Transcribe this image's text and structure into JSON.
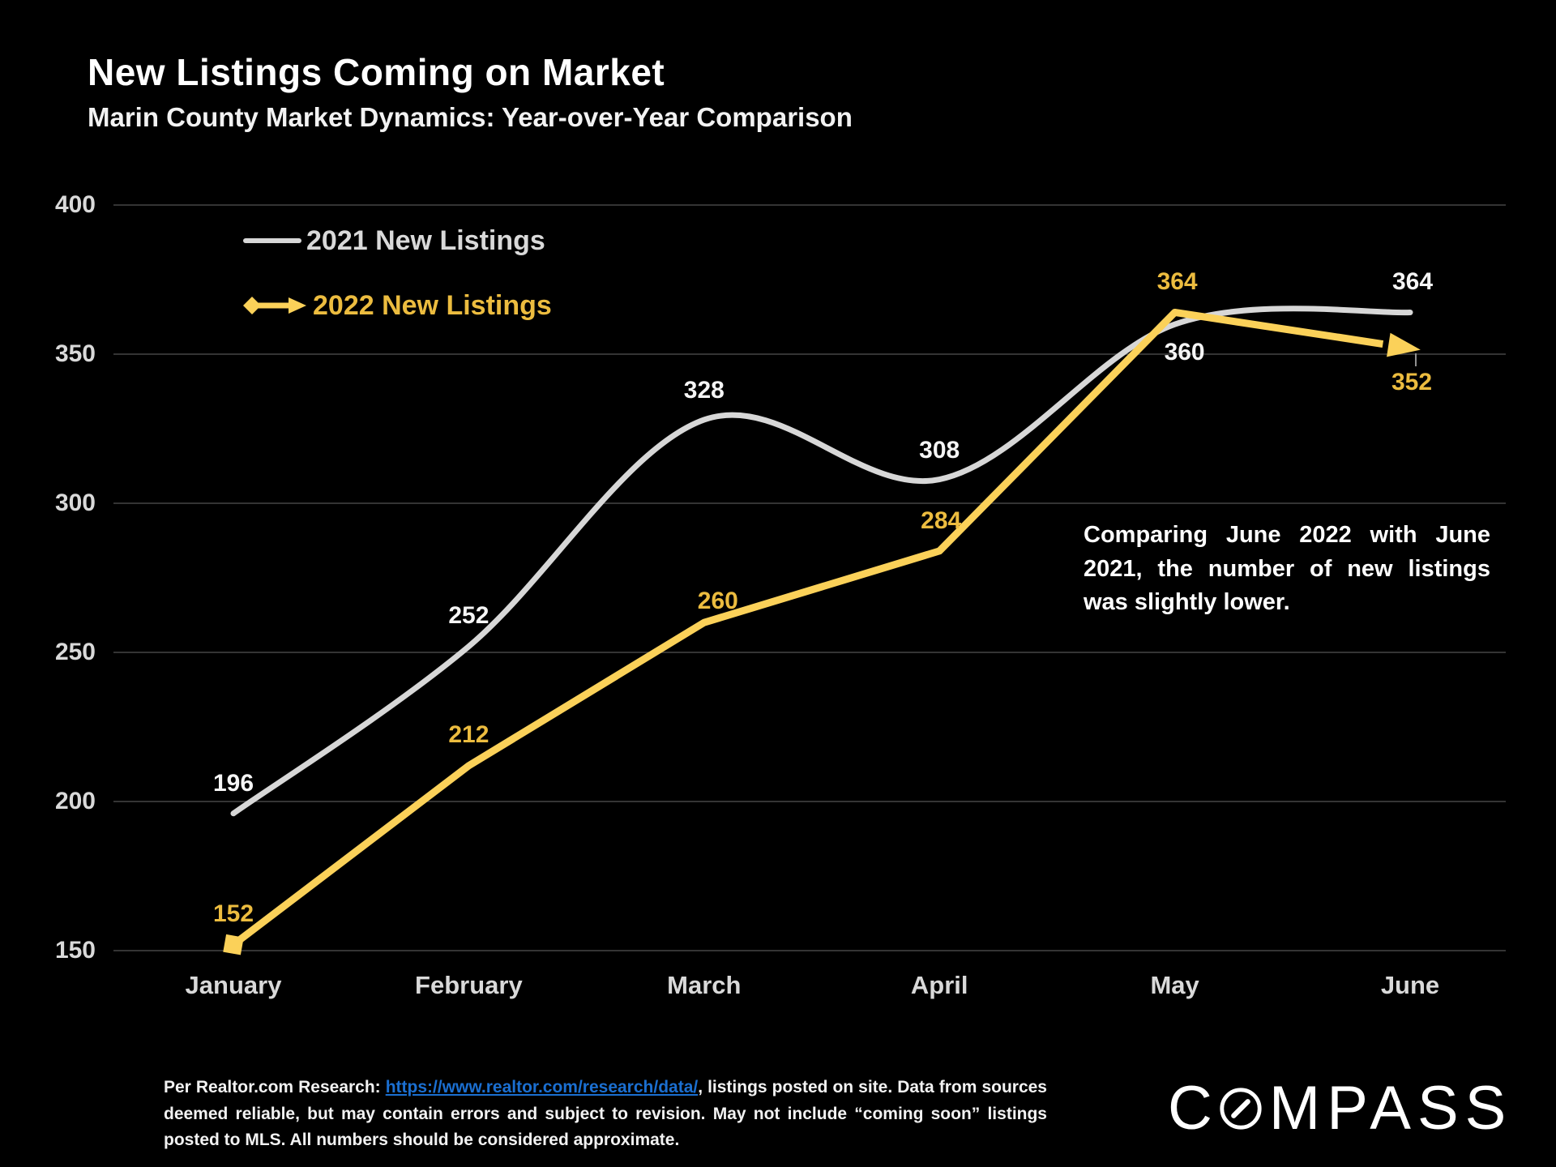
{
  "header": {
    "title": "New Listings Coming on Market",
    "subtitle": "Marin County Market Dynamics: Year-over-Year Comparison"
  },
  "legend": [
    {
      "label": "2021 New Listings",
      "color": "#d7d7d7"
    },
    {
      "label": "2022 New Listings",
      "color": "#ecbc3f"
    }
  ],
  "annotation": "Comparing June 2022 with June 2021, the number of new listings was slightly lower.",
  "footer": {
    "prefix": "Per Realtor.com Research:  ",
    "link": "https://www.realtor.com/research/data/",
    "suffix": ", listings posted on site. Data from sources deemed reliable, but may contain errors and subject to revision. May not include “coming soon” listings posted to MLS. All numbers should be considered approximate."
  },
  "logo": {
    "first": "C",
    "rest": "MPASS",
    "name": "COMPASS"
  },
  "chart_data": {
    "type": "line",
    "title": "New Listings Coming on Market",
    "subtitle": "Marin County Market Dynamics: Year-over-Year Comparison",
    "categories": [
      "January",
      "February",
      "March",
      "April",
      "May",
      "June"
    ],
    "series": [
      {
        "name": "2021 New Listings",
        "values": [
          196,
          252,
          328,
          308,
          360,
          364
        ],
        "color": "#d7d7d7",
        "style": "smooth",
        "label_color": "#f5f5f5"
      },
      {
        "name": "2022 New Listings",
        "values": [
          152,
          212,
          260,
          284,
          364,
          352
        ],
        "color": "#fbd159",
        "style": "straight",
        "start_marker": "square",
        "end_marker": "arrow",
        "label_color": "#ecbc3f"
      }
    ],
    "ylim": [
      150,
      400
    ],
    "yticks": [
      400,
      350,
      300,
      250,
      200,
      150
    ],
    "grid": true,
    "grid_color": "#464646",
    "legend_position": "top-left",
    "background": "#000000"
  }
}
